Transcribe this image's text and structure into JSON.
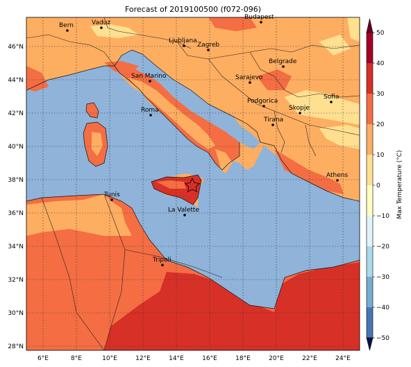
{
  "title": "Forecast of 2019100500 (f072-096)",
  "map": {
    "lon_range": [
      5,
      25
    ],
    "lat_range": [
      27.9,
      47.8
    ],
    "lon_ticks": [
      "6°E",
      "8°E",
      "10°E",
      "12°E",
      "14°E",
      "16°E",
      "18°E",
      "20°E",
      "22°E",
      "24°E"
    ],
    "lat_ticks": [
      "46°N",
      "44°N",
      "42°N",
      "40°N",
      "38°N",
      "36°N",
      "34°N",
      "32°N",
      "30°N",
      "28°N"
    ],
    "colors": {
      "sea": "#8fb3d9",
      "warm_10_20": "#fdae61",
      "warm_20_30": "#f46d43",
      "hot_30_40": "#d73027",
      "cool_0_10": "#fee090",
      "grid": "#333333"
    },
    "marker": {
      "name": "star-marker",
      "color": "#d73027"
    }
  },
  "cities": [
    {
      "id": "bern",
      "name": "Bern"
    },
    {
      "id": "vaduz",
      "name": "Vaduz"
    },
    {
      "id": "budapest",
      "name": "Budapest"
    },
    {
      "id": "ljubljana",
      "name": "Ljubljana"
    },
    {
      "id": "zagreb",
      "name": "Zagreb"
    },
    {
      "id": "belgrade",
      "name": "Belgrade"
    },
    {
      "id": "san-marino",
      "name": "San Marino"
    },
    {
      "id": "sarajevo",
      "name": "Sarajevo"
    },
    {
      "id": "sofia",
      "name": "Sofia"
    },
    {
      "id": "podgorica",
      "name": "Podgorica"
    },
    {
      "id": "skopje",
      "name": "Skopje"
    },
    {
      "id": "roma",
      "name": "Roma"
    },
    {
      "id": "tirana",
      "name": "Tirana"
    },
    {
      "id": "athens",
      "name": "Athens"
    },
    {
      "id": "tunis",
      "name": "Tunis"
    },
    {
      "id": "la-valette",
      "name": "La Valette"
    },
    {
      "id": "tripoli",
      "name": "Tripoli"
    }
  ],
  "colorbar": {
    "label": "Max Temperature (°C)",
    "ticks": [
      "50",
      "40",
      "30",
      "20",
      "10",
      "0",
      "−10",
      "−20",
      "−30",
      "−40",
      "−50"
    ],
    "colors": [
      "#67001f",
      "#a50026",
      "#d73027",
      "#f46d43",
      "#fdae61",
      "#fee090",
      "#ffffbf",
      "#e0f3f8",
      "#abd9e9",
      "#74add1",
      "#4575b4",
      "#313695",
      "#1a1a6e"
    ]
  }
}
